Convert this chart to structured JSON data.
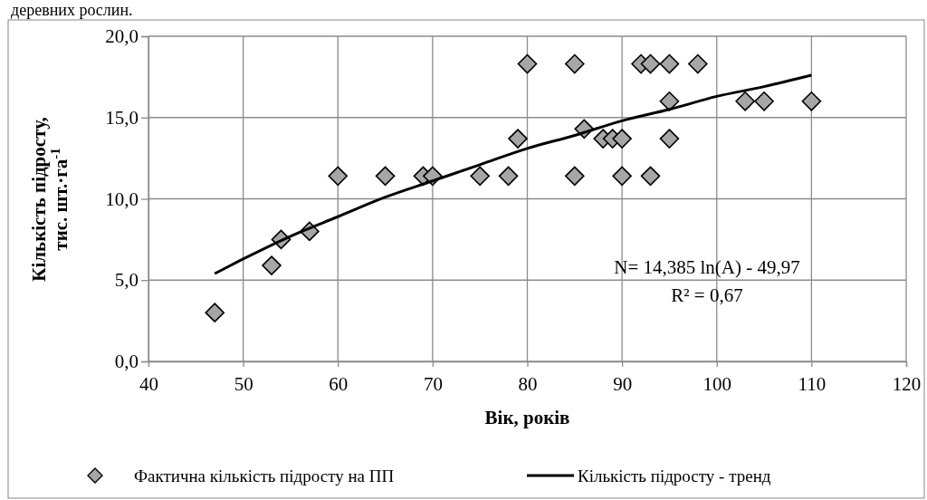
{
  "chart_data": {
    "type": "scatter",
    "xlabel": "Вік, років",
    "ylabel": "Кількість підросту, тис. шт.·га$^{-1}$",
    "annotations": [
      "деревних рослин.",
      "N= 14,385 ln(A) - 49,97",
      "R² = 0,67"
    ],
    "xlim": [
      40,
      120
    ],
    "xticks": [
      40,
      50,
      60,
      70,
      80,
      90,
      100,
      110,
      120
    ],
    "ylim": [
      0,
      20
    ],
    "yticks": [
      {
        "value": 0,
        "label": "0,0"
      },
      {
        "value": 5,
        "label": "5,0"
      },
      {
        "value": 10,
        "label": "10,0"
      },
      {
        "value": 15,
        "label": "15,0"
      },
      {
        "value": 20,
        "label": "20,0"
      }
    ],
    "grid": true,
    "legend": "bottom",
    "series": [
      {
        "name": "Фактична кількість підросту на ПП",
        "marker": "diamond",
        "color": "#a6a6a6",
        "x": [
          47,
          53,
          54,
          57,
          60,
          65,
          69,
          70,
          75,
          78,
          79,
          80,
          85,
          85,
          86,
          88,
          89,
          90,
          90,
          92,
          93,
          93,
          95,
          95,
          95,
          98,
          103,
          105,
          110
        ],
        "values": [
          3.0,
          5.9,
          7.5,
          8.0,
          11.4,
          11.4,
          11.4,
          11.4,
          11.4,
          11.4,
          13.7,
          18.3,
          18.3,
          11.4,
          14.3,
          13.7,
          13.7,
          13.7,
          11.4,
          18.3,
          18.3,
          11.4,
          18.3,
          16.0,
          13.7,
          18.3,
          16.0,
          16.0,
          16.0
        ]
      },
      {
        "name": "Кількість підросту - тренд",
        "type": "line",
        "color": "#000000",
        "x": [
          47,
          50,
          55,
          60,
          65,
          70,
          75,
          80,
          85,
          90,
          95,
          100,
          105,
          110
        ],
        "values": [
          5.4,
          6.3,
          7.7,
          8.9,
          10.1,
          11.1,
          12.1,
          13.1,
          13.9,
          14.8,
          15.5,
          16.3,
          16.9,
          17.6
        ]
      }
    ]
  }
}
